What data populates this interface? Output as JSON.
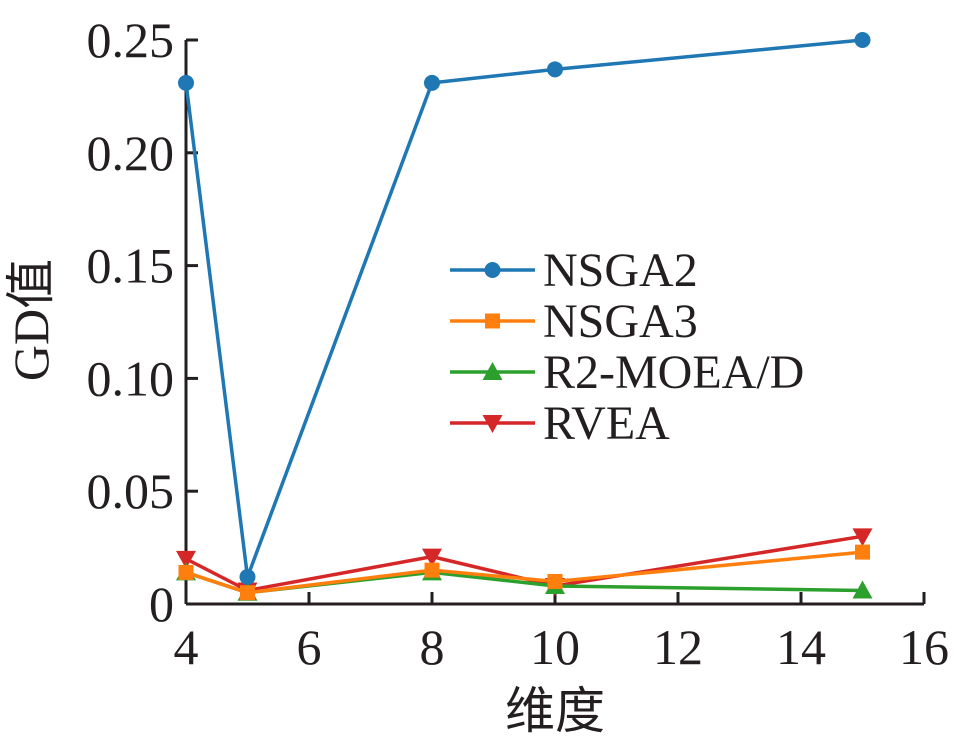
{
  "chart_data": {
    "type": "line",
    "xlabel": "维度",
    "ylabel": "GD值",
    "xlim": [
      4,
      16
    ],
    "ylim": [
      0,
      0.25
    ],
    "xticks": [
      4,
      6,
      8,
      10,
      12,
      14,
      16
    ],
    "xtick_labels": [
      "4",
      "6",
      "8",
      "10",
      "12",
      "14",
      "16"
    ],
    "yticks": [
      0,
      0.05,
      0.1,
      0.15,
      0.2,
      0.25
    ],
    "ytick_labels": [
      "0",
      "0.05",
      "0.10",
      "0.15",
      "0.20",
      "0.25"
    ],
    "grid": false,
    "legend_position": "right",
    "x": [
      4,
      5,
      8,
      10,
      15
    ],
    "series": [
      {
        "name": "NSGA2",
        "color": "#1f77b4",
        "marker": "circle",
        "values": [
          0.231,
          0.012,
          0.231,
          0.237,
          0.25
        ]
      },
      {
        "name": "NSGA3",
        "color": "#ff7f0e",
        "marker": "square",
        "values": [
          0.014,
          0.005,
          0.015,
          0.01,
          0.023
        ]
      },
      {
        "name": "R2-MOEA/D",
        "color": "#2ca02c",
        "marker": "triangle-up",
        "values": [
          0.014,
          0.005,
          0.014,
          0.008,
          0.006
        ]
      },
      {
        "name": "RVEA",
        "color": "#d62728",
        "marker": "triangle-down",
        "values": [
          0.02,
          0.006,
          0.021,
          0.008,
          0.03
        ]
      }
    ]
  }
}
